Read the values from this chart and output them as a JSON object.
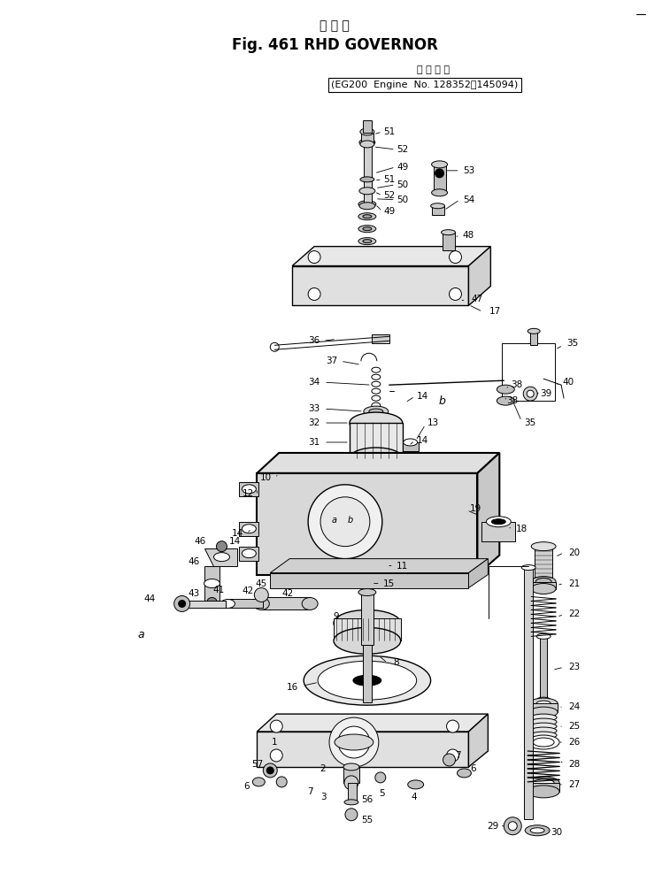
{
  "title_jp": "ガ バ ナ",
  "title_en": "Fig. 461 RHD GOVERNOR",
  "subtitle_jp": "適 用 号 機",
  "subtitle_en": "(EG200  Engine  No. 128352～145094)",
  "bg_color": "#ffffff",
  "fig_width": 7.57,
  "fig_height": 9.88,
  "dpi": 100
}
